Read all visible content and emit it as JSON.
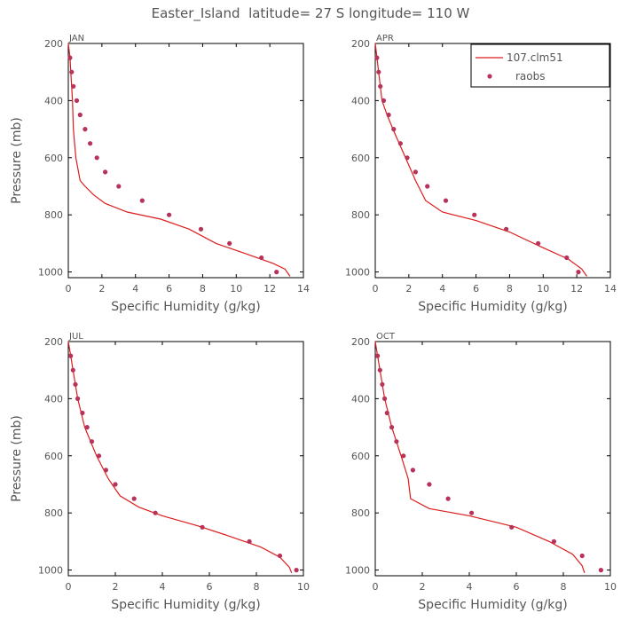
{
  "title": "Easter_Island  latitude= 27 S longitude= 110 W",
  "colors": {
    "model": "#dd1c1c",
    "obs": "#b8325a",
    "axis": "#000000",
    "text": "#555555"
  },
  "legend": {
    "model_label": "107.clm51",
    "obs_label": "raobs",
    "placement": "top-right of APR panel"
  },
  "chart_data": [
    {
      "type": "line",
      "panel_label": "JAN",
      "xlabel": "Specific Humidity (g/kg)",
      "ylabel": "Pressure (mb)",
      "xlim": [
        0,
        14
      ],
      "ylim": [
        1020,
        200
      ],
      "y_inverted": true,
      "xticks": [
        0,
        2,
        4,
        6,
        8,
        10,
        12,
        14
      ],
      "yticks": [
        200,
        400,
        600,
        800,
        1000
      ],
      "series": [
        {
          "name": "107.clm51",
          "kind": "line",
          "points": [
            [
              0.0,
              200
            ],
            [
              0.1,
              250
            ],
            [
              0.15,
              300
            ],
            [
              0.25,
              400
            ],
            [
              0.3,
              500
            ],
            [
              0.45,
              600
            ],
            [
              0.7,
              680
            ],
            [
              1.0,
              700
            ],
            [
              1.5,
              730
            ],
            [
              2.2,
              760
            ],
            [
              3.5,
              790
            ],
            [
              5.5,
              815
            ],
            [
              7.2,
              850
            ],
            [
              8.8,
              900
            ],
            [
              10.5,
              935
            ],
            [
              12.2,
              970
            ],
            [
              12.9,
              990
            ],
            [
              13.2,
              1015
            ]
          ]
        },
        {
          "name": "raobs",
          "kind": "scatter",
          "points": [
            [
              0.1,
              250
            ],
            [
              0.2,
              300
            ],
            [
              0.3,
              350
            ],
            [
              0.5,
              400
            ],
            [
              0.7,
              450
            ],
            [
              1.0,
              500
            ],
            [
              1.3,
              550
            ],
            [
              1.7,
              600
            ],
            [
              2.2,
              650
            ],
            [
              3.0,
              700
            ],
            [
              4.4,
              750
            ],
            [
              6.0,
              800
            ],
            [
              7.9,
              850
            ],
            [
              9.6,
              900
            ],
            [
              11.5,
              950
            ],
            [
              12.4,
              1000
            ]
          ]
        }
      ]
    },
    {
      "type": "line",
      "panel_label": "APR",
      "xlabel": "Specific Humidity (g/kg)",
      "ylabel": "",
      "xlim": [
        0,
        14
      ],
      "ylim": [
        1020,
        200
      ],
      "y_inverted": true,
      "xticks": [
        0,
        2,
        4,
        6,
        8,
        10,
        12,
        14
      ],
      "yticks": [
        200,
        400,
        600,
        800,
        1000
      ],
      "series": [
        {
          "name": "107.clm51",
          "kind": "line",
          "points": [
            [
              0.0,
              200
            ],
            [
              0.1,
              250
            ],
            [
              0.2,
              300
            ],
            [
              0.4,
              400
            ],
            [
              0.7,
              450
            ],
            [
              1.2,
              520
            ],
            [
              1.8,
              600
            ],
            [
              2.4,
              680
            ],
            [
              3.0,
              750
            ],
            [
              4.0,
              790
            ],
            [
              6.0,
              820
            ],
            [
              8.0,
              860
            ],
            [
              9.8,
              910
            ],
            [
              11.5,
              955
            ],
            [
              12.3,
              990
            ],
            [
              12.6,
              1015
            ]
          ]
        },
        {
          "name": "raobs",
          "kind": "scatter",
          "points": [
            [
              0.1,
              250
            ],
            [
              0.2,
              300
            ],
            [
              0.3,
              350
            ],
            [
              0.5,
              400
            ],
            [
              0.8,
              450
            ],
            [
              1.1,
              500
            ],
            [
              1.5,
              550
            ],
            [
              1.9,
              600
            ],
            [
              2.4,
              650
            ],
            [
              3.1,
              700
            ],
            [
              4.2,
              750
            ],
            [
              5.9,
              800
            ],
            [
              7.8,
              850
            ],
            [
              9.7,
              900
            ],
            [
              11.4,
              950
            ],
            [
              12.1,
              1000
            ]
          ]
        }
      ]
    },
    {
      "type": "line",
      "panel_label": "JUL",
      "xlabel": "Specific Humidity (g/kg)",
      "ylabel": "Pressure (mb)",
      "xlim": [
        0,
        10
      ],
      "ylim": [
        1020,
        200
      ],
      "y_inverted": true,
      "xticks": [
        0,
        2,
        4,
        6,
        8,
        10
      ],
      "yticks": [
        200,
        400,
        600,
        800,
        1000
      ],
      "series": [
        {
          "name": "107.clm51",
          "kind": "line",
          "points": [
            [
              0.0,
              200
            ],
            [
              0.1,
              250
            ],
            [
              0.2,
              300
            ],
            [
              0.4,
              400
            ],
            [
              0.7,
              500
            ],
            [
              1.2,
              600
            ],
            [
              1.7,
              680
            ],
            [
              2.2,
              740
            ],
            [
              3.0,
              780
            ],
            [
              4.0,
              810
            ],
            [
              5.5,
              845
            ],
            [
              6.8,
              880
            ],
            [
              8.2,
              920
            ],
            [
              9.0,
              955
            ],
            [
              9.4,
              990
            ],
            [
              9.5,
              1010
            ]
          ]
        },
        {
          "name": "raobs",
          "kind": "scatter",
          "points": [
            [
              0.1,
              250
            ],
            [
              0.2,
              300
            ],
            [
              0.3,
              350
            ],
            [
              0.4,
              400
            ],
            [
              0.6,
              450
            ],
            [
              0.8,
              500
            ],
            [
              1.0,
              550
            ],
            [
              1.3,
              600
            ],
            [
              1.6,
              650
            ],
            [
              2.0,
              700
            ],
            [
              2.8,
              750
            ],
            [
              3.7,
              800
            ],
            [
              5.7,
              850
            ],
            [
              7.7,
              900
            ],
            [
              9.0,
              950
            ],
            [
              9.7,
              1000
            ]
          ]
        }
      ]
    },
    {
      "type": "line",
      "panel_label": "OCT",
      "xlabel": "Specific Humidity (g/kg)",
      "ylabel": "",
      "xlim": [
        0,
        10
      ],
      "ylim": [
        1020,
        200
      ],
      "y_inverted": true,
      "xticks": [
        0,
        2,
        4,
        6,
        8,
        10
      ],
      "yticks": [
        200,
        400,
        600,
        800,
        1000
      ],
      "series": [
        {
          "name": "107.clm51",
          "kind": "line",
          "points": [
            [
              0.0,
              200
            ],
            [
              0.1,
              250
            ],
            [
              0.2,
              300
            ],
            [
              0.4,
              400
            ],
            [
              0.7,
              500
            ],
            [
              1.1,
              600
            ],
            [
              1.4,
              680
            ],
            [
              1.5,
              750
            ],
            [
              2.3,
              785
            ],
            [
              4.0,
              810
            ],
            [
              6.0,
              850
            ],
            [
              7.4,
              900
            ],
            [
              8.4,
              945
            ],
            [
              8.8,
              985
            ],
            [
              8.9,
              1010
            ]
          ]
        },
        {
          "name": "raobs",
          "kind": "scatter",
          "points": [
            [
              0.1,
              250
            ],
            [
              0.2,
              300
            ],
            [
              0.3,
              350
            ],
            [
              0.4,
              400
            ],
            [
              0.5,
              450
            ],
            [
              0.7,
              500
            ],
            [
              0.9,
              550
            ],
            [
              1.2,
              600
            ],
            [
              1.6,
              650
            ],
            [
              2.3,
              700
            ],
            [
              3.1,
              750
            ],
            [
              4.1,
              800
            ],
            [
              5.8,
              850
            ],
            [
              7.6,
              900
            ],
            [
              8.8,
              950
            ],
            [
              9.6,
              1000
            ]
          ]
        }
      ]
    }
  ]
}
